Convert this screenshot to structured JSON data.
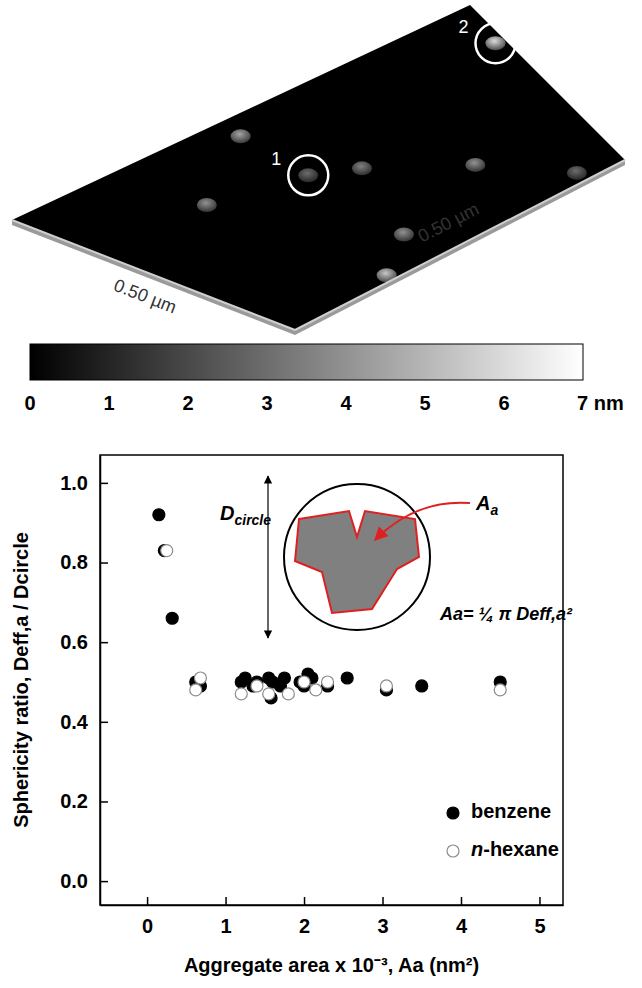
{
  "chart_data": [
    {
      "type": "surface",
      "xlim": [
        0,
        0.5
      ],
      "ylim": [
        0,
        0.5
      ],
      "xticks": [
        {
          "value": 0.5,
          "label": "0.50 µm"
        }
      ],
      "yticks": [
        {
          "value": 0.5,
          "label": "0.50 µm"
        }
      ],
      "features": {
        "x": [
          0.05,
          0.16,
          0.2,
          0.24,
          0.35,
          0.11,
          0.42,
          0.475,
          0.485
        ],
        "y": [
          0.225,
          0.125,
          0.225,
          0.27,
          0.36,
          0.49,
          0.22,
          0.44,
          0.15
        ],
        "height": [
          4.5,
          4,
          3,
          3.5,
          4,
          6,
          4,
          3,
          5.5
        ]
      },
      "annotations": [
        {
          "text": "1",
          "x": 0.2,
          "y": 0.225
        },
        {
          "text": "2",
          "x": 0.11,
          "y": 0.49
        }
      ],
      "colorbar": {
        "range": [
          0,
          7
        ],
        "ticks": [
          0,
          1,
          2,
          3,
          4,
          5,
          6,
          {
            "value": 7,
            "label": "7 nm"
          }
        ],
        "colors": [
          "#000000",
          "#ffffff"
        ]
      }
    },
    {
      "type": "scatter",
      "xlabel": "Aggregate area x 10⁻³, Aa (nm²)",
      "ylabel": "Sphericity ratio,  Deff,a / Dcircle",
      "xlim": [
        -0.6,
        5.3
      ],
      "ylim": [
        -0.06,
        1.07
      ],
      "xticks": [
        0,
        1,
        2,
        3,
        4,
        5
      ],
      "yticks": [
        {
          "value": 0,
          "label": "0.0"
        },
        {
          "value": 0.2,
          "label": "0.2"
        },
        {
          "value": 0.4,
          "label": "0.4"
        },
        {
          "value": 0.6,
          "label": "0.6"
        },
        {
          "value": 0.8,
          "label": "0.8"
        },
        {
          "value": 1,
          "label": "1.0"
        }
      ],
      "legend": "lower right",
      "annotations": [
        "Dcircle",
        "Aa",
        "Aa= ¼ π Deff,a²"
      ],
      "series": [
        {
          "name": "benzene",
          "color": "#000000",
          "marker": "filled-circle",
          "x": [
            0.15,
            0.22,
            0.32,
            0.62,
            0.68,
            1.2,
            1.25,
            1.35,
            1.4,
            1.55,
            1.58,
            1.6,
            1.7,
            1.75,
            1.95,
            2.0,
            2.05,
            2.1,
            2.3,
            2.55,
            3.05,
            3.5,
            4.5
          ],
          "values": [
            0.92,
            0.83,
            0.66,
            0.5,
            0.49,
            0.5,
            0.51,
            0.49,
            0.5,
            0.51,
            0.46,
            0.5,
            0.49,
            0.51,
            0.5,
            0.49,
            0.52,
            0.51,
            0.49,
            0.51,
            0.48,
            0.49,
            0.5
          ]
        },
        {
          "name": "n-hexane",
          "color": "#8c8c8c",
          "marker": "open-circle",
          "x": [
            0.25,
            0.62,
            0.68,
            1.2,
            1.4,
            1.55,
            1.8,
            2.0,
            2.15,
            2.3,
            3.05,
            4.5
          ],
          "values": [
            0.83,
            0.48,
            0.51,
            0.47,
            0.49,
            0.47,
            0.47,
            0.5,
            0.48,
            0.5,
            0.49,
            0.48
          ]
        }
      ]
    }
  ]
}
